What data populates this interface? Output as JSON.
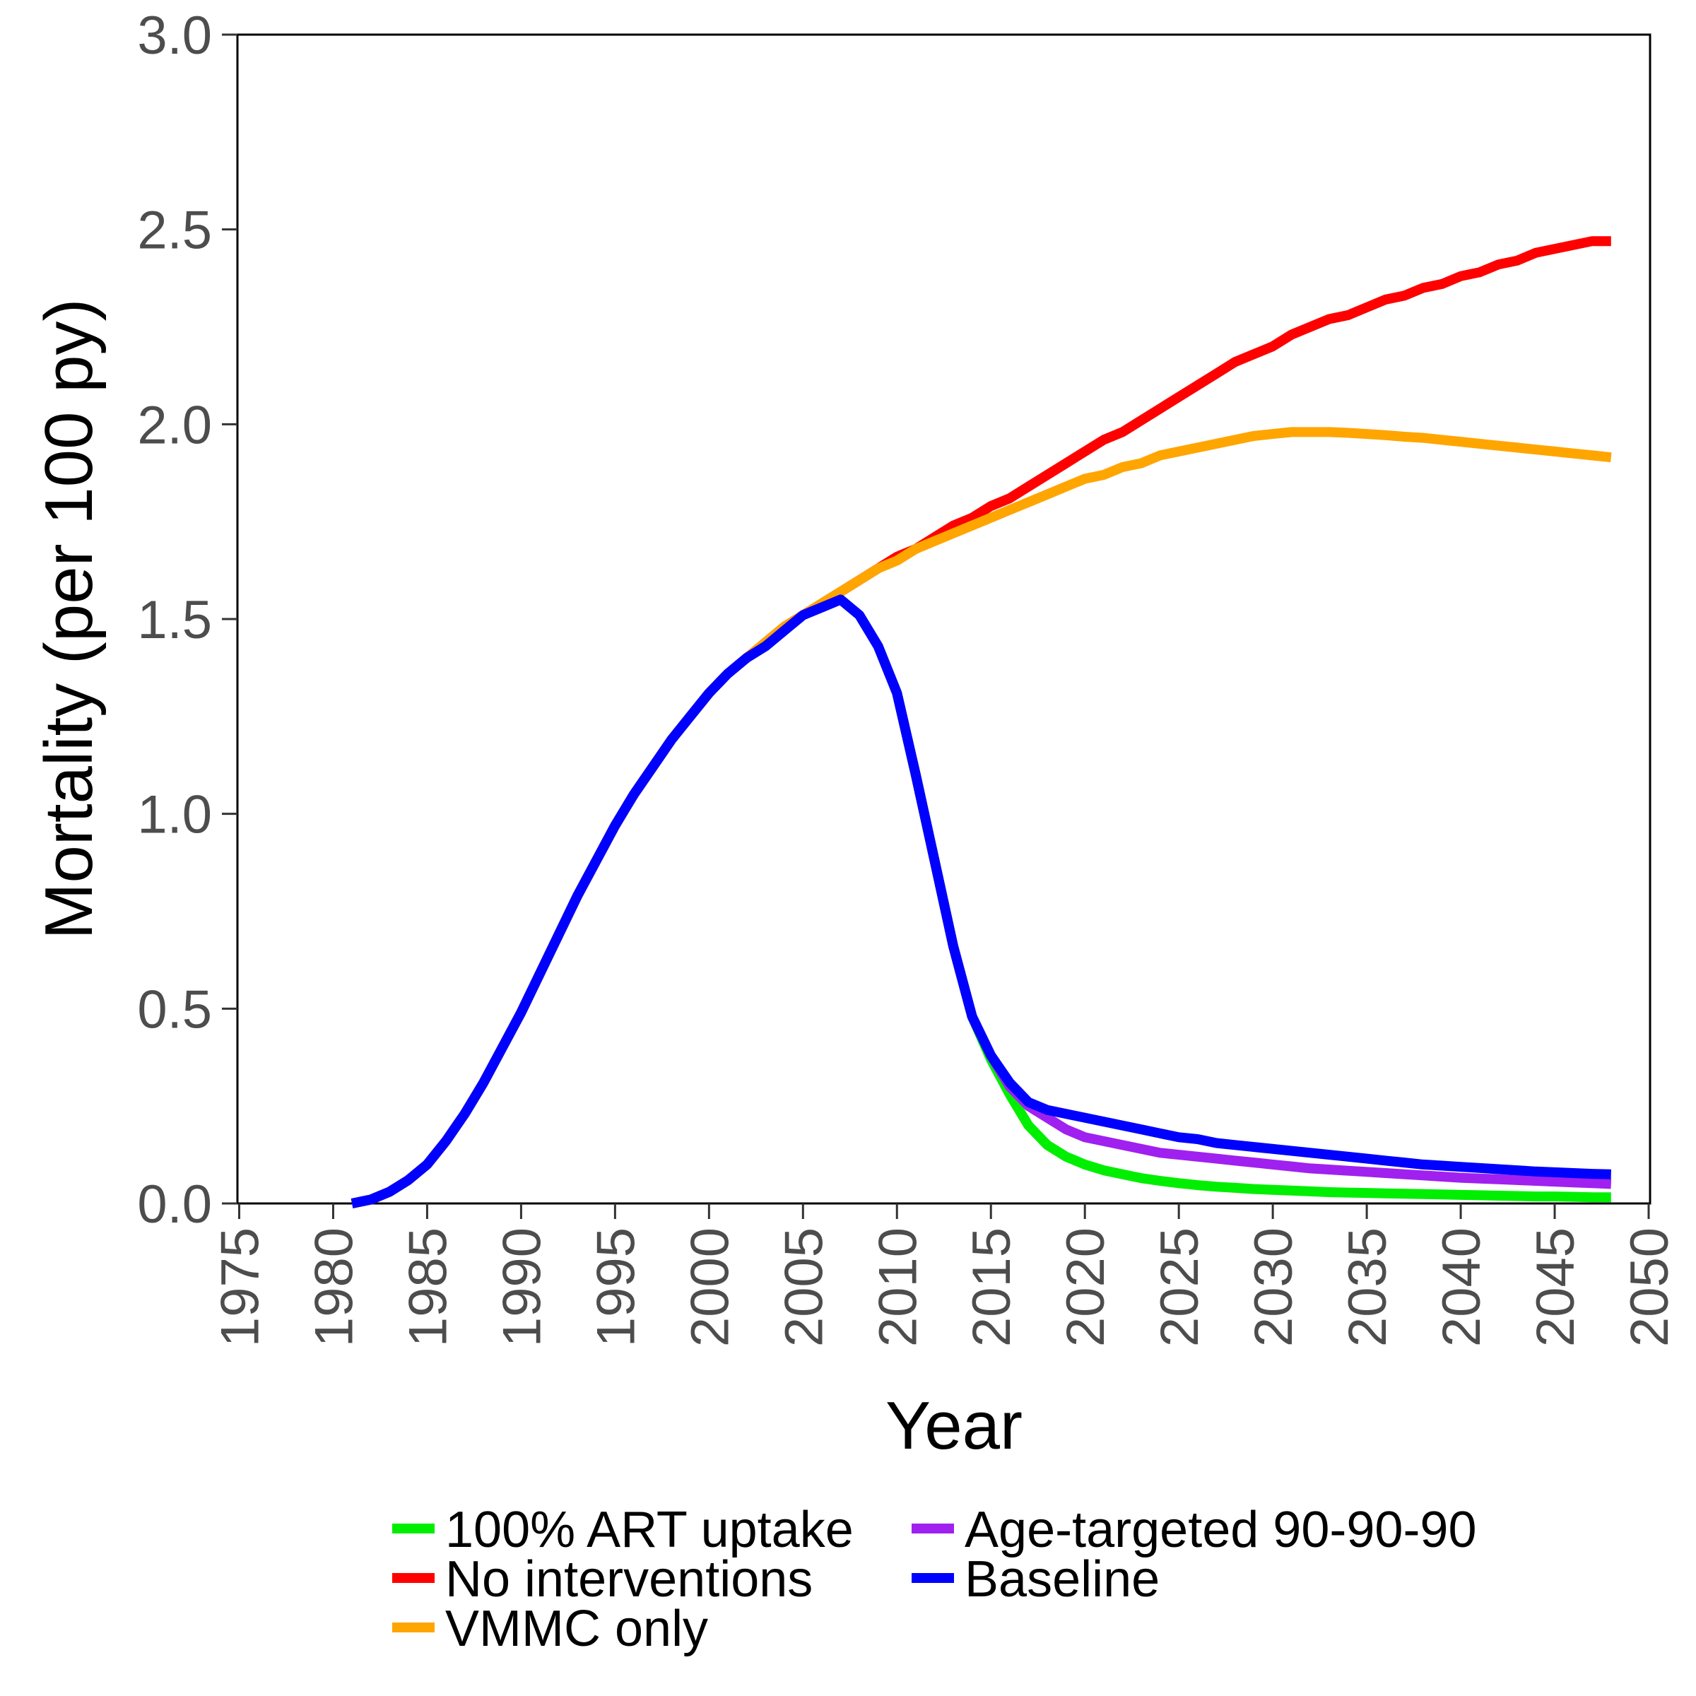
{
  "chart_data": {
    "type": "line",
    "title": "",
    "xlabel": "Year",
    "ylabel": "Mortality (per 100 py)",
    "xlim": [
      1975,
      2050
    ],
    "ylim": [
      0,
      3.0
    ],
    "x_ticks": [
      "1975",
      "1980",
      "1985",
      "1990",
      "1995",
      "2000",
      "2005",
      "2010",
      "2015",
      "2020",
      "2025",
      "2030",
      "2035",
      "2040",
      "2045",
      "2050"
    ],
    "y_ticks": [
      "0.0",
      "0.5",
      "1.0",
      "1.5",
      "2.0",
      "2.5",
      "3.0"
    ],
    "grid": false,
    "legend_position": "bottom",
    "x": [
      1981,
      1982,
      1983,
      1984,
      1985,
      1986,
      1987,
      1988,
      1989,
      1990,
      1991,
      1992,
      1993,
      1994,
      1995,
      1996,
      1997,
      1998,
      1999,
      2000,
      2001,
      2002,
      2003,
      2004,
      2005,
      2006,
      2007,
      2008,
      2009,
      2010,
      2011,
      2012,
      2013,
      2014,
      2015,
      2016,
      2017,
      2018,
      2019,
      2020,
      2021,
      2022,
      2023,
      2024,
      2025,
      2026,
      2027,
      2028,
      2029,
      2030,
      2031,
      2032,
      2033,
      2034,
      2035,
      2036,
      2037,
      2038,
      2039,
      2040,
      2041,
      2042,
      2043,
      2044,
      2045,
      2046,
      2047,
      2048
    ],
    "series": [
      {
        "name": "100% ART uptake",
        "color": "#00ee00",
        "values": [
          0.0,
          0.01,
          0.03,
          0.06,
          0.1,
          0.16,
          0.23,
          0.31,
          0.4,
          0.49,
          0.59,
          0.69,
          0.79,
          0.88,
          0.97,
          1.05,
          1.12,
          1.19,
          1.25,
          1.31,
          1.36,
          1.4,
          1.43,
          1.47,
          1.51,
          1.53,
          1.55,
          1.51,
          1.43,
          1.31,
          1.1,
          0.88,
          0.66,
          0.48,
          0.37,
          0.28,
          0.2,
          0.15,
          0.12,
          0.1,
          0.085,
          0.075,
          0.065,
          0.058,
          0.052,
          0.047,
          0.043,
          0.04,
          0.037,
          0.035,
          0.033,
          0.031,
          0.029,
          0.028,
          0.027,
          0.026,
          0.025,
          0.024,
          0.023,
          0.022,
          0.021,
          0.02,
          0.019,
          0.018,
          0.018,
          0.017,
          0.016,
          0.016
        ]
      },
      {
        "name": "No interventions",
        "color": "#ff0000",
        "values": [
          0.0,
          0.01,
          0.03,
          0.06,
          0.1,
          0.16,
          0.23,
          0.31,
          0.4,
          0.49,
          0.59,
          0.69,
          0.79,
          0.88,
          0.97,
          1.05,
          1.12,
          1.19,
          1.25,
          1.31,
          1.36,
          1.4,
          1.44,
          1.48,
          1.51,
          1.54,
          1.57,
          1.6,
          1.63,
          1.66,
          1.68,
          1.71,
          1.74,
          1.76,
          1.79,
          1.81,
          1.84,
          1.87,
          1.9,
          1.93,
          1.96,
          1.98,
          2.01,
          2.04,
          2.07,
          2.1,
          2.13,
          2.16,
          2.18,
          2.2,
          2.23,
          2.25,
          2.27,
          2.28,
          2.3,
          2.32,
          2.33,
          2.35,
          2.36,
          2.38,
          2.39,
          2.41,
          2.42,
          2.44,
          2.45,
          2.46,
          2.47,
          2.47
        ]
      },
      {
        "name": "VMMC only",
        "color": "#ffa500",
        "values": [
          0.0,
          0.01,
          0.03,
          0.06,
          0.1,
          0.16,
          0.23,
          0.31,
          0.4,
          0.49,
          0.59,
          0.69,
          0.79,
          0.88,
          0.97,
          1.05,
          1.12,
          1.19,
          1.25,
          1.31,
          1.36,
          1.4,
          1.44,
          1.48,
          1.51,
          1.54,
          1.57,
          1.6,
          1.63,
          1.65,
          1.68,
          1.7,
          1.72,
          1.74,
          1.76,
          1.78,
          1.8,
          1.82,
          1.84,
          1.86,
          1.87,
          1.89,
          1.9,
          1.92,
          1.93,
          1.94,
          1.95,
          1.96,
          1.97,
          1.975,
          1.98,
          1.98,
          1.98,
          1.978,
          1.975,
          1.972,
          1.968,
          1.965,
          1.96,
          1.955,
          1.95,
          1.945,
          1.94,
          1.935,
          1.93,
          1.925,
          1.92,
          1.915
        ]
      },
      {
        "name": "Age-targeted 90-90-90",
        "color": "#a020f0",
        "values": [
          0.0,
          0.01,
          0.03,
          0.06,
          0.1,
          0.16,
          0.23,
          0.31,
          0.4,
          0.49,
          0.59,
          0.69,
          0.79,
          0.88,
          0.97,
          1.05,
          1.12,
          1.19,
          1.25,
          1.31,
          1.36,
          1.4,
          1.43,
          1.47,
          1.51,
          1.53,
          1.55,
          1.51,
          1.43,
          1.31,
          1.1,
          0.88,
          0.66,
          0.48,
          0.38,
          0.3,
          0.25,
          0.22,
          0.19,
          0.17,
          0.16,
          0.15,
          0.14,
          0.13,
          0.125,
          0.12,
          0.115,
          0.11,
          0.105,
          0.1,
          0.095,
          0.09,
          0.087,
          0.084,
          0.081,
          0.078,
          0.075,
          0.072,
          0.069,
          0.066,
          0.064,
          0.062,
          0.06,
          0.058,
          0.056,
          0.054,
          0.052,
          0.05
        ]
      },
      {
        "name": "Baseline",
        "color": "#0000ff",
        "values": [
          0.0,
          0.01,
          0.03,
          0.06,
          0.1,
          0.16,
          0.23,
          0.31,
          0.4,
          0.49,
          0.59,
          0.69,
          0.79,
          0.88,
          0.97,
          1.05,
          1.12,
          1.19,
          1.25,
          1.31,
          1.36,
          1.4,
          1.43,
          1.47,
          1.51,
          1.53,
          1.55,
          1.51,
          1.43,
          1.31,
          1.1,
          0.88,
          0.66,
          0.48,
          0.38,
          0.31,
          0.26,
          0.24,
          0.23,
          0.22,
          0.21,
          0.2,
          0.19,
          0.18,
          0.17,
          0.165,
          0.155,
          0.15,
          0.145,
          0.14,
          0.135,
          0.13,
          0.125,
          0.12,
          0.115,
          0.11,
          0.105,
          0.1,
          0.097,
          0.094,
          0.091,
          0.088,
          0.085,
          0.082,
          0.08,
          0.078,
          0.076,
          0.075
        ]
      }
    ]
  }
}
